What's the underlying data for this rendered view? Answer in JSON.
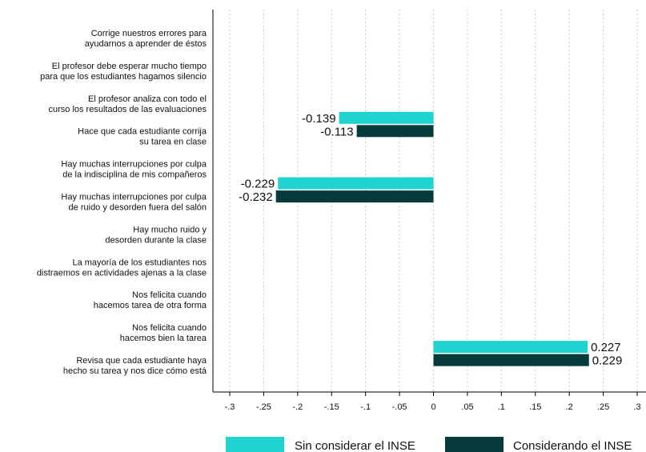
{
  "chart_data": {
    "type": "bar",
    "orientation": "horizontal",
    "categories": [
      [
        "Corrige nuestros errores para",
        "ayudarnos a aprender de éstos"
      ],
      [
        "El profesor debe esperar mucho tiempo",
        "para que los estudiantes hagamos silencio"
      ],
      [
        "El profesor analiza con todo el",
        "curso los resultados de las evaluaciones"
      ],
      [
        "Hace que cada estudiante corrija",
        "su tarea en clase"
      ],
      [
        "Hay muchas interrupciones por culpa",
        "de la indisciplina de mis compañeros"
      ],
      [
        "Hay muchas interrupciones por culpa",
        "de ruido y desorden fuera del salón"
      ],
      [
        "Hay mucho ruido y",
        "desorden durante la clase"
      ],
      [
        "La mayoría de los estudiantes nos",
        "distraemos en actividades ajenas a la clase"
      ],
      [
        "Nos felicita cuando",
        "hacemos tarea de otra forma"
      ],
      [
        "Nos felicita cuando",
        "hacemos bien la tarea"
      ],
      [
        "Revisa que cada estudiante haya",
        "hecho su tarea y nos dice cómo está"
      ]
    ],
    "series": [
      {
        "name": "Sin considerar el INSE",
        "color": "#1fd3d0",
        "values": [
          null,
          null,
          -0.139,
          null,
          -0.229,
          null,
          null,
          null,
          null,
          0.227,
          null
        ],
        "labels": [
          "",
          "",
          "-0.139",
          "",
          "-0.229",
          "",
          "",
          "",
          "",
          "0.227",
          ""
        ]
      },
      {
        "name": "Considerando el INSE",
        "color": "#073a3a",
        "values": [
          null,
          null,
          -0.113,
          null,
          -0.232,
          null,
          null,
          null,
          null,
          0.229,
          null
        ],
        "labels": [
          "",
          "",
          "-0.113",
          "",
          "-0.232",
          "",
          "",
          "",
          "",
          "0.229",
          ""
        ]
      }
    ],
    "xlim": [
      -0.3,
      0.3
    ],
    "xticks": [
      -0.3,
      -0.25,
      -0.2,
      -0.15,
      -0.1,
      -0.05,
      0,
      0.05,
      0.1,
      0.15,
      0.2,
      0.25,
      0.3
    ],
    "xtick_labels": [
      "-.3",
      "-.25",
      "-.2",
      "-.15",
      "-.1",
      "-.05",
      "0",
      ".05",
      ".1",
      ".15",
      ".2",
      ".25",
      ".3"
    ],
    "grid": "vertical dashed",
    "legend_position": "bottom"
  }
}
